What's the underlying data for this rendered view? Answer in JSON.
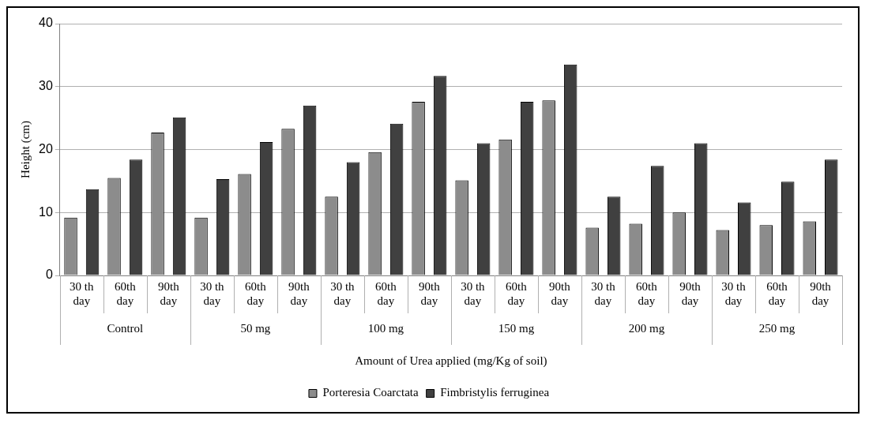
{
  "chart_data": {
    "type": "bar",
    "xlabel": "Amount of Urea applied (mg/Kg of soil)",
    "ylabel": "Height (cm)",
    "categories": [
      "30 th day",
      "60th day",
      "90th day",
      "30 th day",
      "60th day",
      "90th day",
      "30 th day",
      "60th day",
      "90th day",
      "30 th day",
      "60th day",
      "90th day",
      "30 th day",
      "60th day",
      "90th day",
      "30 th day",
      "60th day",
      "90th day"
    ],
    "annotations": [
      "Control",
      "50 mg",
      "100 mg",
      "150 mg",
      "200 mg",
      "250 mg"
    ],
    "series": [
      {
        "name": "Porteresia Coarctata",
        "color": "#8c8c8c",
        "values": [
          9.2,
          15.5,
          22.7,
          9.2,
          16.1,
          23.3,
          12.5,
          19.6,
          27.6,
          15.1,
          21.6,
          27.8,
          7.6,
          8.2,
          10.0,
          7.2,
          8.0,
          8.6
        ]
      },
      {
        "name": "Fimbristylis ferruginea",
        "color": "#404040",
        "values": [
          13.7,
          18.4,
          25.1,
          15.3,
          21.2,
          27.0,
          18.0,
          24.1,
          31.7,
          21.0,
          27.6,
          33.5,
          12.5,
          17.4,
          21.0,
          11.6,
          14.9,
          18.4
        ]
      }
    ],
    "ylim": [
      0,
      40
    ],
    "yticks": [
      0,
      10,
      20,
      30,
      40
    ],
    "grid": "y",
    "legend": "bottom"
  }
}
